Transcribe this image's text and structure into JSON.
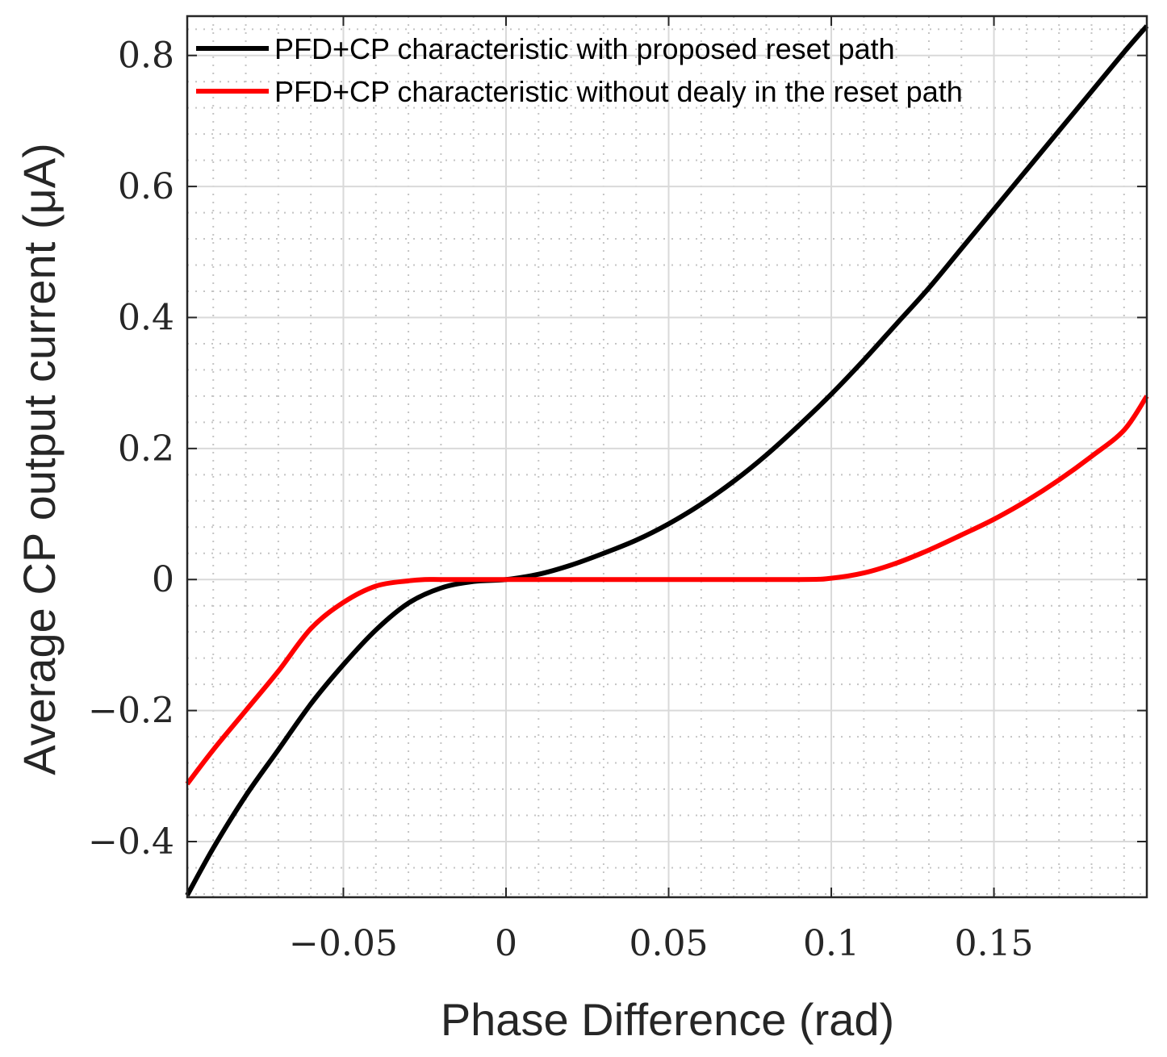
{
  "chart_data": {
    "type": "line",
    "title": "",
    "xlabel": "Phase Difference (rad)",
    "ylabel": "Average CP output current (μA)",
    "xlim": [
      -0.098,
      0.197
    ],
    "ylim": [
      -0.485,
      0.86
    ],
    "grid": true,
    "minor_grid": true,
    "legend_position": "top-left",
    "x_ticks": [
      -0.05,
      0,
      0.05,
      0.1,
      0.15
    ],
    "x_tick_labels": [
      "−0.05",
      "0",
      "0.05",
      "0.1",
      "0.15"
    ],
    "y_ticks": [
      -0.4,
      -0.2,
      0,
      0.2,
      0.4,
      0.6,
      0.8
    ],
    "y_tick_labels": [
      "−0.4",
      "−0.2",
      "0",
      "0.2",
      "0.4",
      "0.6",
      "0.8"
    ],
    "series": [
      {
        "name": "PFD+CP characteristic with proposed reset path",
        "color": "#000000",
        "x": [
          -0.098,
          -0.09,
          -0.08,
          -0.07,
          -0.06,
          -0.05,
          -0.04,
          -0.03,
          -0.02,
          -0.01,
          0,
          0.01,
          0.02,
          0.03,
          0.04,
          0.05,
          0.06,
          0.07,
          0.08,
          0.09,
          0.1,
          0.11,
          0.12,
          0.13,
          0.14,
          0.15,
          0.16,
          0.17,
          0.18,
          0.19,
          0.197
        ],
        "y": [
          -0.482,
          -0.41,
          -0.33,
          -0.26,
          -0.19,
          -0.13,
          -0.077,
          -0.036,
          -0.013,
          -0.003,
          0,
          0.008,
          0.022,
          0.04,
          0.06,
          0.085,
          0.115,
          0.15,
          0.19,
          0.235,
          0.283,
          0.335,
          0.39,
          0.445,
          0.505,
          0.565,
          0.625,
          0.685,
          0.745,
          0.805,
          0.845
        ]
      },
      {
        "name": "PFD+CP characteristic without dealy in the reset path",
        "color": "#ff0000",
        "x": [
          -0.098,
          -0.09,
          -0.08,
          -0.07,
          -0.06,
          -0.05,
          -0.04,
          -0.03,
          -0.025,
          -0.02,
          -0.01,
          0,
          0.05,
          0.09,
          0.1,
          0.11,
          0.12,
          0.13,
          0.14,
          0.15,
          0.16,
          0.17,
          0.18,
          0.19,
          0.197
        ],
        "y": [
          -0.312,
          -0.26,
          -0.2,
          -0.14,
          -0.075,
          -0.035,
          -0.01,
          -0.002,
          0,
          0,
          0,
          0,
          0,
          0,
          0.002,
          0.01,
          0.025,
          0.045,
          0.068,
          0.092,
          0.12,
          0.152,
          0.188,
          0.228,
          0.28
        ]
      }
    ]
  }
}
